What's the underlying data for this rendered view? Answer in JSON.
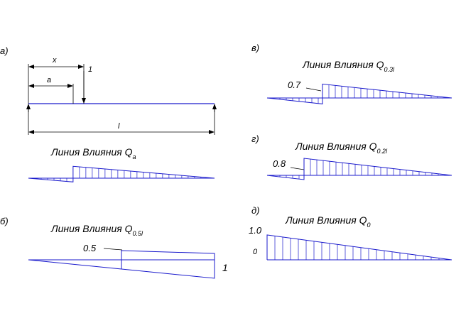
{
  "colors": {
    "line": "#1a1acc",
    "ink": "#000000"
  },
  "panels": {
    "a": {
      "letter": "а)",
      "dim_x": "x",
      "dim_a": "a",
      "load": "1",
      "dim_l": "l",
      "caption": "Линия Влияния Q",
      "caption_sub": "a"
    },
    "b": {
      "letter": "б)",
      "caption": "Линия Влияния Q",
      "caption_sub": "0.5l",
      "value": "0.5",
      "end_value": "1"
    },
    "v": {
      "letter": "в)",
      "caption": "Линия Влияния Q",
      "caption_sub": "0.3l",
      "value": "0.7"
    },
    "g": {
      "letter": "г)",
      "caption": "Линия Влияния Q",
      "caption_sub": "0.2l",
      "value": "0.8"
    },
    "d": {
      "letter": "д)",
      "caption": "Линия Влияния Q",
      "caption_sub": "0",
      "value": "1.0",
      "zero": "0"
    }
  }
}
